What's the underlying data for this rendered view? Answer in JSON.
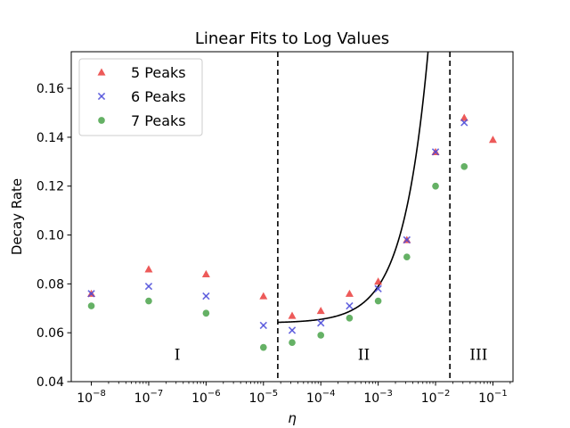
{
  "chart_data": {
    "type": "scatter",
    "title": "Linear Fits to Log Values",
    "xlabel": "η",
    "ylabel": "Decay Rate",
    "xscale": "log",
    "xlim_exp": [
      -8.35,
      -0.65
    ],
    "ylim": [
      0.04,
      0.175
    ],
    "x_ticks": [
      {
        "base": "10",
        "exp": "−8",
        "value_exp": -8
      },
      {
        "base": "10",
        "exp": "−7",
        "value_exp": -7
      },
      {
        "base": "10",
        "exp": "−6",
        "value_exp": -6
      },
      {
        "base": "10",
        "exp": "−5",
        "value_exp": -5
      },
      {
        "base": "10",
        "exp": "−4",
        "value_exp": -4
      },
      {
        "base": "10",
        "exp": "−3",
        "value_exp": -3
      },
      {
        "base": "10",
        "exp": "−2",
        "value_exp": -2
      },
      {
        "base": "10",
        "exp": "−1",
        "value_exp": -1
      }
    ],
    "y_ticks": [
      "0.04",
      "0.06",
      "0.08",
      "0.10",
      "0.12",
      "0.14",
      "0.16"
    ],
    "series": [
      {
        "name": "5 Peaks",
        "marker": "triangle",
        "color": "#e8312f",
        "points": [
          {
            "x_exp": -8,
            "y": 0.076
          },
          {
            "x_exp": -7,
            "y": 0.086
          },
          {
            "x_exp": -6,
            "y": 0.084
          },
          {
            "x_exp": -5,
            "y": 0.075
          },
          {
            "x_exp": -4.5,
            "y": 0.067
          },
          {
            "x_exp": -4,
            "y": 0.069
          },
          {
            "x_exp": -3.5,
            "y": 0.076
          },
          {
            "x_exp": -3,
            "y": 0.081
          },
          {
            "x_exp": -2.5,
            "y": 0.098
          },
          {
            "x_exp": -2,
            "y": 0.134
          },
          {
            "x_exp": -1.5,
            "y": 0.148
          },
          {
            "x_exp": -1,
            "y": 0.139
          }
        ]
      },
      {
        "name": "6 Peaks",
        "marker": "x",
        "color": "#4b4bd9",
        "points": [
          {
            "x_exp": -8,
            "y": 0.076
          },
          {
            "x_exp": -7,
            "y": 0.079
          },
          {
            "x_exp": -6,
            "y": 0.075
          },
          {
            "x_exp": -5,
            "y": 0.063
          },
          {
            "x_exp": -4.5,
            "y": 0.061
          },
          {
            "x_exp": -4,
            "y": 0.064
          },
          {
            "x_exp": -3.5,
            "y": 0.071
          },
          {
            "x_exp": -3,
            "y": 0.078
          },
          {
            "x_exp": -2.5,
            "y": 0.098
          },
          {
            "x_exp": -2,
            "y": 0.134
          },
          {
            "x_exp": -1.5,
            "y": 0.146
          }
        ]
      },
      {
        "name": "7 Peaks",
        "marker": "circle",
        "color": "#3f9e3f",
        "points": [
          {
            "x_exp": -8,
            "y": 0.071
          },
          {
            "x_exp": -7,
            "y": 0.073
          },
          {
            "x_exp": -6,
            "y": 0.068
          },
          {
            "x_exp": -5,
            "y": 0.054
          },
          {
            "x_exp": -4.5,
            "y": 0.056
          },
          {
            "x_exp": -4,
            "y": 0.059
          },
          {
            "x_exp": -3.5,
            "y": 0.066
          },
          {
            "x_exp": -3,
            "y": 0.073
          },
          {
            "x_exp": -2.5,
            "y": 0.091
          },
          {
            "x_exp": -2,
            "y": 0.12
          },
          {
            "x_exp": -1.5,
            "y": 0.128
          }
        ]
      }
    ],
    "fit_curve": {
      "color": "#000000",
      "x_exp_range": [
        -4.75,
        -1.98
      ],
      "base": 0.064,
      "coef": 15,
      "description": "y = base + coef * eta"
    },
    "vlines_x_exp": [
      -4.75,
      -1.75
    ],
    "regions": [
      {
        "label": "I",
        "x_exp": -6.5,
        "y": 0.049
      },
      {
        "label": "II",
        "x_exp": -3.25,
        "y": 0.049
      },
      {
        "label": "III",
        "x_exp": -1.25,
        "y": 0.049
      }
    ],
    "legend_position": "upper-left"
  }
}
